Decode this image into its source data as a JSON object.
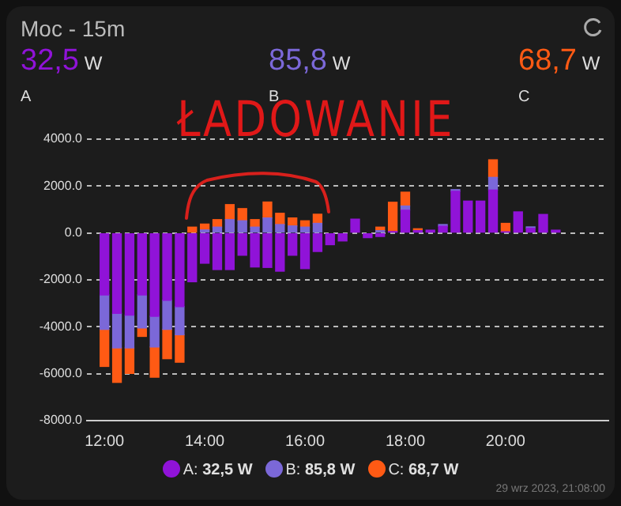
{
  "chart_data": {
    "type": "bar",
    "title": "Moc - 15m",
    "stacked": true,
    "x": [
      12,
      12.25,
      12.5,
      12.75,
      13,
      13.25,
      13.5,
      13.75,
      14,
      14.25,
      14.5,
      14.75,
      15,
      15.25,
      15.5,
      15.75,
      16,
      16.25,
      16.5,
      16.75,
      17,
      17.25,
      17.5,
      17.75,
      18,
      18.25,
      18.5,
      18.75,
      19,
      19.25,
      19.5,
      19.75,
      20,
      20.25,
      20.5,
      20.75,
      21
    ],
    "series": [
      {
        "name": "A: 32,5 W",
        "color": "#9013d8",
        "values": [
          -2640,
          -3430,
          -3500,
          -2640,
          -3550,
          -2870,
          -3140,
          -2080,
          -1290,
          -1560,
          -1560,
          -950,
          -1450,
          -1470,
          -1630,
          -950,
          -1520,
          -790,
          -500,
          -340,
          590,
          -200,
          -150,
          60,
          970,
          100,
          120,
          290,
          1780,
          1360,
          1360,
          1830,
          50,
          900,
          200,
          790,
          120
        ]
      },
      {
        "name": "B: 85,8 W",
        "color": "#7b68d8",
        "values": [
          -1470,
          -1470,
          -1400,
          -1410,
          -1310,
          -1240,
          -1200,
          null,
          130,
          250,
          570,
          520,
          250,
          640,
          360,
          300,
          250,
          410,
          null,
          null,
          null,
          null,
          100,
          null,
          180,
          null,
          null,
          70,
          70,
          null,
          null,
          540,
          null,
          null,
          60,
          null,
          null
        ]
      },
      {
        "name": "C: 68,7 W",
        "color": "#ff5a14",
        "values": [
          -1580,
          -1470,
          -1090,
          -360,
          -1290,
          -1250,
          -1170,
          250,
          250,
          320,
          640,
          520,
          320,
          680,
          480,
          340,
          270,
          390,
          null,
          null,
          null,
          null,
          150,
          1250,
          590,
          80,
          null,
          null,
          null,
          null,
          null,
          750,
          360,
          null,
          null,
          null,
          null
        ]
      }
    ],
    "xlim": [
      11.65,
      22.05
    ],
    "xticks": [
      {
        "value": 12,
        "label": "12:00"
      },
      {
        "value": 14,
        "label": "14:00"
      },
      {
        "value": 16,
        "label": "16:00"
      },
      {
        "value": 18,
        "label": "18:00"
      },
      {
        "value": 20,
        "label": "20:00"
      }
    ],
    "ylim": [
      -8000,
      4000
    ],
    "yticks": [
      {
        "value": -8000,
        "label": "-8000.0"
      },
      {
        "value": -6000,
        "label": "-6000.0"
      },
      {
        "value": -4000,
        "label": "-4000.0"
      },
      {
        "value": -2000,
        "label": "-2000.0"
      },
      {
        "value": 0,
        "label": "0.0"
      },
      {
        "value": 2000,
        "label": "2000.0"
      },
      {
        "value": 4000,
        "label": "4000.0"
      }
    ],
    "grid": "y",
    "legend": "bottom",
    "annotations": [
      "32,5 W",
      "A",
      "85,8 W",
      "B",
      "68,7 W",
      "C",
      "ŁADOWANIE",
      "29 wrz 2023, 21:08:00"
    ]
  }
}
